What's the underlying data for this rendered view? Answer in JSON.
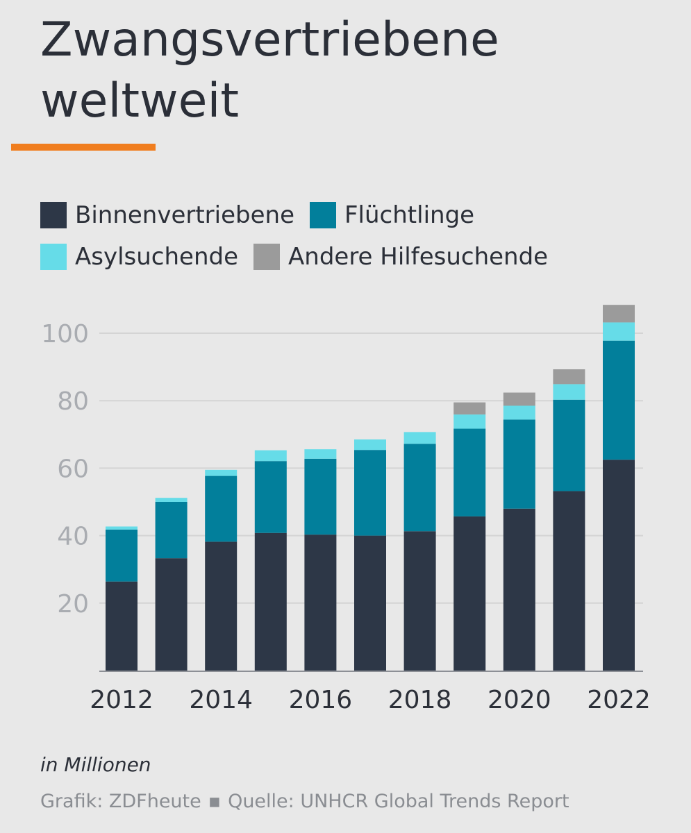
{
  "title": "Zwangsvertriebene weltweit",
  "colors": {
    "background": "#e8e8e8",
    "accent": "#f07d1e",
    "text": "#2b2f38",
    "tick": "#a9acb1",
    "grid": "#d4d4d4"
  },
  "legend": [
    {
      "label": "Binnenvertriebene",
      "color": "#2d3747"
    },
    {
      "label": "Flüchtlinge",
      "color": "#027f9b"
    },
    {
      "label": "Asylsuchende",
      "color": "#66dce8"
    },
    {
      "label": "Andere Hilfesuchende",
      "color": "#9b9b9b"
    }
  ],
  "note": "in Millionen",
  "credit": {
    "graphic": "Grafik: ZDFheute",
    "separator": "▪",
    "source": "Quelle: UNHCR Global Trends Report"
  },
  "chart_data": {
    "type": "bar",
    "stacked": true,
    "categories": [
      "2012",
      "2013",
      "2014",
      "2015",
      "2016",
      "2017",
      "2018",
      "2019",
      "2020",
      "2021",
      "2022"
    ],
    "xtick_labels": [
      "2012",
      "2014",
      "2016",
      "2018",
      "2020",
      "2022"
    ],
    "yticks": [
      20,
      40,
      60,
      80,
      100
    ],
    "ylim": [
      0,
      112
    ],
    "grid": true,
    "legend_position": "top-left",
    "series": [
      {
        "name": "Binnenvertriebene",
        "color": "#2d3747",
        "values": [
          26.4,
          33.3,
          38.2,
          40.8,
          40.3,
          40.0,
          41.3,
          45.7,
          48.0,
          53.2,
          62.5
        ]
      },
      {
        "name": "Flüchtlinge",
        "color": "#027f9b",
        "values": [
          15.4,
          16.7,
          19.5,
          21.3,
          22.5,
          25.4,
          25.9,
          26.0,
          26.4,
          27.1,
          35.3
        ]
      },
      {
        "name": "Asylsuchende",
        "color": "#66dce8",
        "values": [
          0.9,
          1.2,
          1.8,
          3.2,
          2.8,
          3.1,
          3.5,
          4.2,
          4.1,
          4.6,
          5.4
        ]
      },
      {
        "name": "Andere Hilfesuchende",
        "color": "#9b9b9b",
        "values": [
          0,
          0,
          0,
          0,
          0,
          0,
          0,
          3.6,
          3.9,
          4.4,
          5.2
        ]
      }
    ]
  }
}
